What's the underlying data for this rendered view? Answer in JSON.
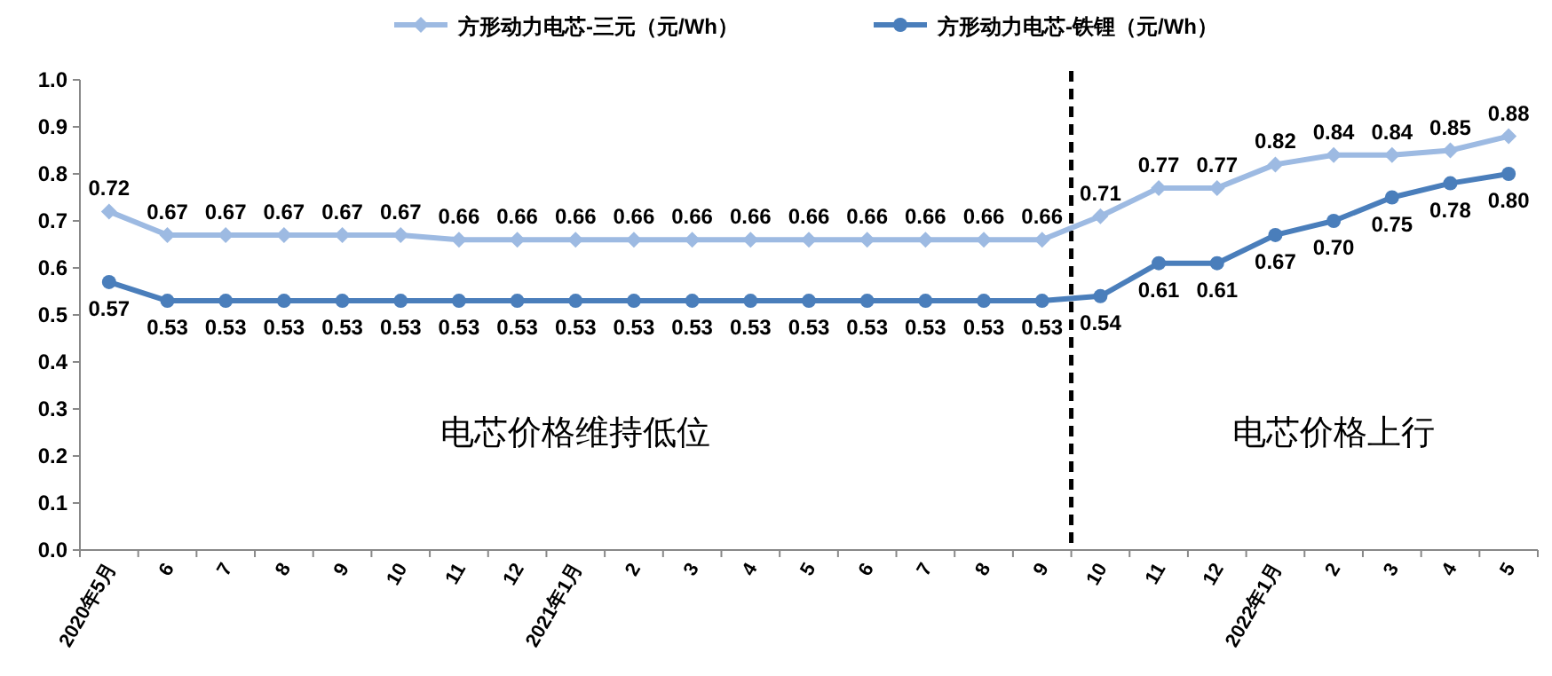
{
  "chart_data": {
    "type": "line",
    "categories": [
      "2020年5月",
      "6",
      "7",
      "8",
      "9",
      "10",
      "11",
      "12",
      "2021年1月",
      "2",
      "3",
      "4",
      "5",
      "6",
      "7",
      "8",
      "9",
      "10",
      "11",
      "12",
      "2022年1月",
      "2",
      "3",
      "4",
      "5"
    ],
    "series": [
      {
        "name": "方形动力电芯-三元（元/Wh）",
        "color": "#9dbae2",
        "marker": "diamond",
        "values": [
          0.72,
          0.67,
          0.67,
          0.67,
          0.67,
          0.67,
          0.66,
          0.66,
          0.66,
          0.66,
          0.66,
          0.66,
          0.66,
          0.66,
          0.66,
          0.66,
          0.66,
          0.71,
          0.77,
          0.77,
          0.82,
          0.84,
          0.84,
          0.85,
          0.88
        ],
        "value_labels": [
          "0.72",
          "0.67",
          "0.67",
          "0.67",
          "0.67",
          "0.67",
          "0.66",
          "0.66",
          "0.66",
          "0.66",
          "0.66",
          "0.66",
          "0.66",
          "0.66",
          "0.66",
          "0.66",
          "0.66",
          "0.71",
          "0.77",
          "0.77",
          "0.82",
          "0.84",
          "0.84",
          "0.85",
          "0.88"
        ]
      },
      {
        "name": "方形动力电芯-铁锂（元/Wh）",
        "color": "#4a7ebb",
        "marker": "circle",
        "values": [
          0.57,
          0.53,
          0.53,
          0.53,
          0.53,
          0.53,
          0.53,
          0.53,
          0.53,
          0.53,
          0.53,
          0.53,
          0.53,
          0.53,
          0.53,
          0.53,
          0.53,
          0.54,
          0.61,
          0.61,
          0.67,
          0.7,
          0.75,
          0.78,
          0.8
        ],
        "value_labels": [
          "0.57",
          "0.53",
          "0.53",
          "0.53",
          "0.53",
          "0.53",
          "0.53",
          "0.53",
          "0.53",
          "0.53",
          "0.53",
          "0.53",
          "0.53",
          "0.53",
          "0.53",
          "0.53",
          "0.53",
          "0.54",
          "0.61",
          "0.61",
          "0.67",
          "0.70",
          "0.75",
          "0.78",
          "0.80"
        ]
      }
    ],
    "ylim": [
      0,
      1
    ],
    "yticks": [
      {
        "value": 0,
        "label": "0.0"
      },
      0.1,
      0.2,
      0.3,
      0.4,
      0.5,
      0.6,
      0.7,
      0.8,
      0.9,
      {
        "value": 1,
        "label": "1.0"
      }
    ],
    "annotations": [
      "电芯价格维持低位",
      "电芯价格上行"
    ],
    "legend": "top",
    "grid": false,
    "line_style": "solid"
  }
}
